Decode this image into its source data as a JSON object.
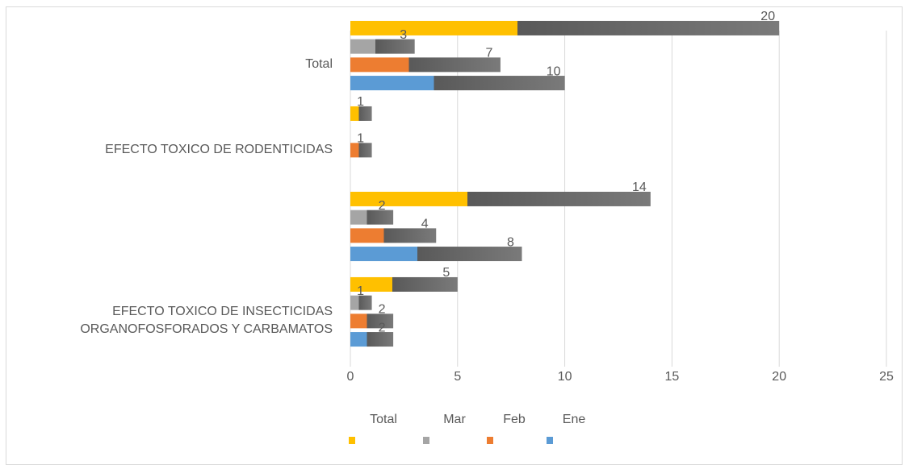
{
  "chart_data": {
    "type": "bar",
    "orientation": "horizontal",
    "categories": [
      "EFECTO TOXICO DE INSECTICIDAS ORGANOFOSFORADOS Y CARBAMATOS",
      null,
      "EFECTO TOXICO DE RODENTICIDAS",
      "Total"
    ],
    "series": [
      {
        "name": "Total",
        "color": "#ffc000",
        "values": [
          5,
          14,
          1,
          20
        ]
      },
      {
        "name": "Mar",
        "color": "#a5a5a5",
        "values": [
          1,
          2,
          null,
          3
        ]
      },
      {
        "name": "Feb",
        "color": "#ed7d31",
        "values": [
          2,
          4,
          1,
          7
        ]
      },
      {
        "name": "Ene",
        "color": "#5b9bd5",
        "values": [
          2,
          8,
          null,
          10
        ]
      }
    ],
    "xlim": [
      0,
      25
    ],
    "xticks": [
      0,
      5,
      10,
      15,
      20,
      25
    ],
    "grid": true,
    "legend": "bottom"
  }
}
